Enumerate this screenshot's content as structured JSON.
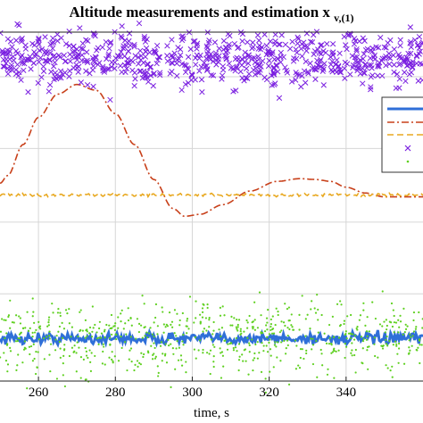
{
  "chart_data": {
    "type": "line",
    "title": "Altitude measurements and estimation x",
    "title_subscript": "v,(1)",
    "xlabel": "time, s",
    "ylabel": "",
    "xlim": [
      250,
      360
    ],
    "xticks": [
      260,
      280,
      300,
      320,
      340
    ],
    "xtick_labels": [
      "260",
      "280",
      "300",
      "320",
      "340"
    ],
    "grid": true,
    "legend_placement": "right (partially cropped)",
    "series": [
      {
        "style": "solid",
        "color": "#2f6fd8",
        "marker": "none",
        "x": [
          250,
          360
        ],
        "y": [
          -3.2,
          -3.2
        ],
        "noise": 0.15
      },
      {
        "style": "dashdot",
        "color": "#c8401a",
        "marker": "none",
        "x": [
          250,
          252,
          256,
          260,
          265,
          270,
          275,
          280,
          285,
          290,
          295,
          298,
          302,
          308,
          315,
          322,
          328,
          332,
          336,
          340,
          345,
          350,
          355,
          360
        ],
        "y": [
          0.8,
          1.0,
          1.8,
          2.5,
          3.1,
          3.35,
          3.2,
          2.6,
          1.8,
          0.9,
          0.15,
          -0.05,
          0.0,
          0.25,
          0.6,
          0.85,
          0.92,
          0.9,
          0.85,
          0.7,
          0.55,
          0.45,
          0.45,
          0.45
        ]
      },
      {
        "style": "dashed",
        "color": "#e8a820",
        "marker": "none",
        "x": [
          250,
          360
        ],
        "y": [
          0.5,
          0.5
        ],
        "noise": 0.04
      },
      {
        "style": "none",
        "color": "#7a1fe0",
        "marker": "x",
        "x": [
          250,
          360
        ],
        "y": [
          4.0,
          4.0
        ],
        "noise": 0.35,
        "count": 700
      },
      {
        "style": "none",
        "color": "#5fd020",
        "marker": "dot",
        "x": [
          250,
          360
        ],
        "y": [
          -3.2,
          -3.2
        ],
        "noise": 0.45,
        "count": 700
      }
    ]
  }
}
